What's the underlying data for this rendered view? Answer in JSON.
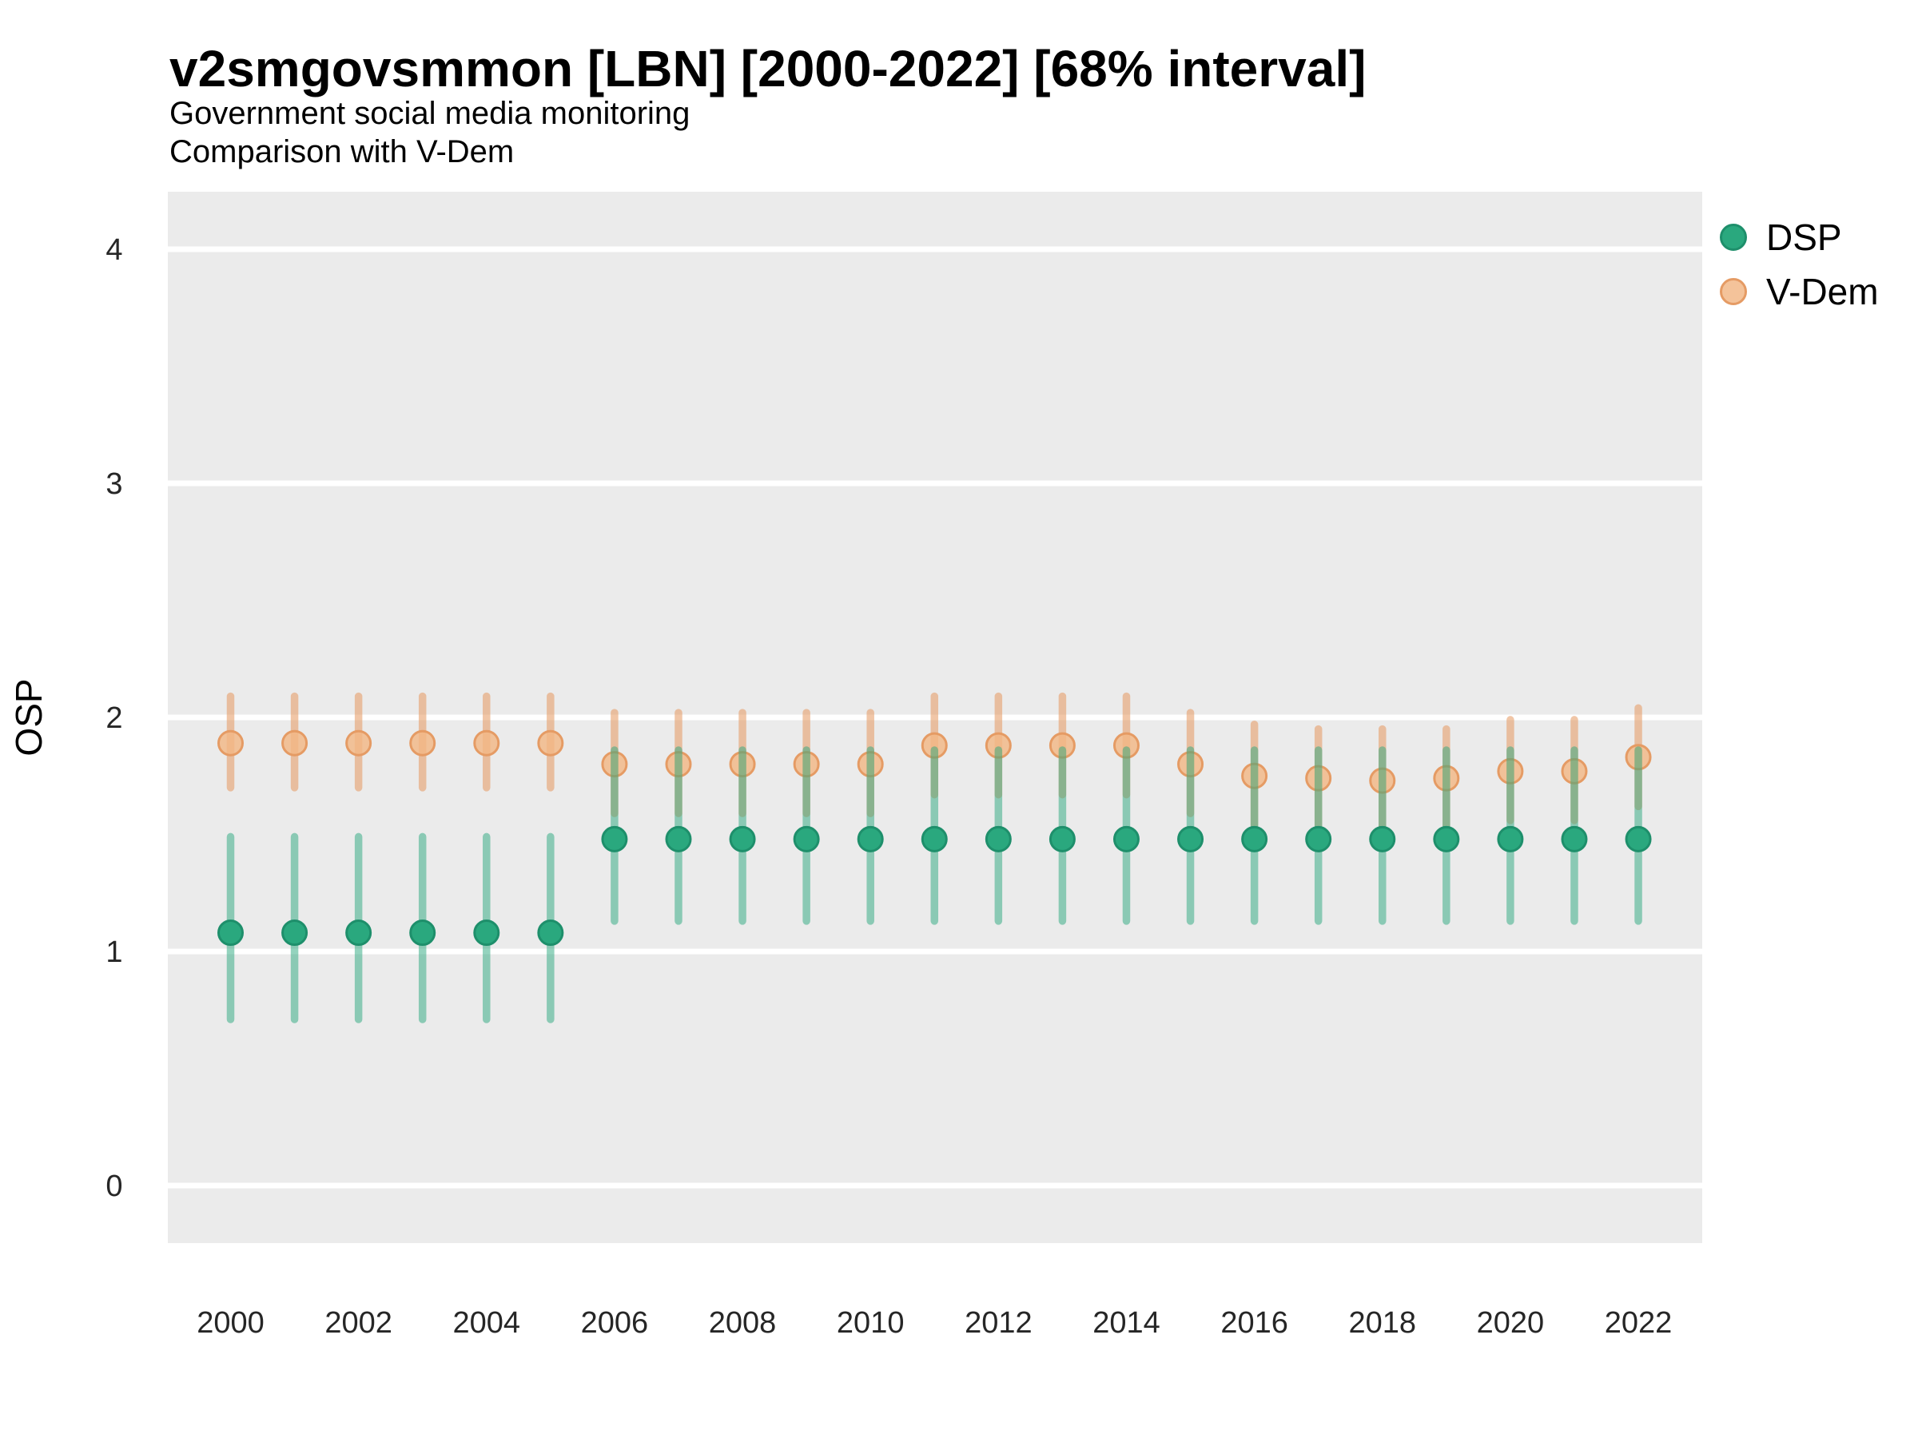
{
  "header": {
    "title": "v2smgovsmmon [LBN] [2000-2022] [68% interval]",
    "subtitle1": "Government social media monitoring",
    "subtitle2": "Comparison with V-Dem"
  },
  "axes": {
    "y_title": "OSP",
    "y_tick_labels": [
      "0",
      "1",
      "2",
      "3",
      "4"
    ],
    "x_tick_labels": [
      "2000",
      "2002",
      "2004",
      "2006",
      "2008",
      "2010",
      "2012",
      "2014",
      "2016",
      "2018",
      "2020",
      "2022"
    ]
  },
  "legend": {
    "items": [
      {
        "label": "DSP",
        "fill": "#2AA87E",
        "stroke": "#1E8F6B"
      },
      {
        "label": "V-Dem",
        "fill": "#F4C39A",
        "stroke": "#E59B64"
      }
    ]
  },
  "colors": {
    "page_bg": "#FFFFFF",
    "panel_bg": "#EBEBEB",
    "grid": "#FFFFFF",
    "text": "#000000",
    "tick_text": "#262626",
    "dsp_point_fill": "#2AA87E",
    "dsp_point_stroke": "#1E8F6B",
    "dsp_bar": "rgba(42,168,126,0.5)",
    "vdem_point_fill": "rgba(242,183,131,0.8)",
    "vdem_point_stroke": "#E59B64",
    "vdem_bar": "rgba(229,151,94,0.55)"
  },
  "chart_data": {
    "type": "pointrange",
    "title": "v2smgovsmmon [LBN] [2000-2022] [68% interval]",
    "subtitle": [
      "Government social media monitoring",
      "Comparison with V-Dem"
    ],
    "xlabel": "",
    "ylabel": "OSP",
    "interval": "68%",
    "ylim": [
      0,
      4
    ],
    "y_ticks": [
      0,
      1,
      2,
      3,
      4
    ],
    "x_ticks": [
      2000,
      2002,
      2004,
      2006,
      2008,
      2010,
      2012,
      2014,
      2016,
      2018,
      2020,
      2022
    ],
    "grid": "horizontal-major-white-on-gray",
    "legend_position": "right",
    "x": [
      2000,
      2001,
      2002,
      2003,
      2004,
      2005,
      2006,
      2007,
      2008,
      2009,
      2010,
      2011,
      2012,
      2013,
      2014,
      2015,
      2016,
      2017,
      2018,
      2019,
      2020,
      2021,
      2022
    ],
    "series": [
      {
        "name": "DSP",
        "mid": [
          1.08,
          1.08,
          1.08,
          1.08,
          1.08,
          1.08,
          1.48,
          1.48,
          1.48,
          1.48,
          1.48,
          1.48,
          1.48,
          1.48,
          1.48,
          1.48,
          1.48,
          1.48,
          1.48,
          1.48,
          1.48,
          1.48,
          1.48
        ],
        "lo": [
          0.71,
          0.71,
          0.71,
          0.71,
          0.71,
          0.71,
          1.13,
          1.13,
          1.13,
          1.13,
          1.13,
          1.13,
          1.13,
          1.13,
          1.13,
          1.13,
          1.13,
          1.13,
          1.13,
          1.13,
          1.13,
          1.13,
          1.13
        ],
        "hi": [
          1.49,
          1.49,
          1.49,
          1.49,
          1.49,
          1.49,
          1.86,
          1.86,
          1.86,
          1.86,
          1.86,
          1.86,
          1.86,
          1.86,
          1.86,
          1.86,
          1.86,
          1.86,
          1.86,
          1.86,
          1.86,
          1.86,
          1.86
        ]
      },
      {
        "name": "V-Dem",
        "mid": [
          1.89,
          1.89,
          1.89,
          1.89,
          1.89,
          1.89,
          1.8,
          1.8,
          1.8,
          1.8,
          1.8,
          1.88,
          1.88,
          1.88,
          1.88,
          1.8,
          1.75,
          1.74,
          1.73,
          1.74,
          1.77,
          1.77,
          1.83
        ],
        "lo": [
          1.7,
          1.7,
          1.7,
          1.7,
          1.7,
          1.7,
          1.59,
          1.59,
          1.59,
          1.59,
          1.59,
          1.67,
          1.67,
          1.67,
          1.67,
          1.59,
          1.54,
          1.52,
          1.52,
          1.52,
          1.56,
          1.56,
          1.62
        ],
        "hi": [
          2.09,
          2.09,
          2.09,
          2.09,
          2.09,
          2.09,
          2.02,
          2.02,
          2.02,
          2.02,
          2.02,
          2.09,
          2.09,
          2.09,
          2.09,
          2.02,
          1.97,
          1.95,
          1.95,
          1.95,
          1.99,
          1.99,
          2.04
        ]
      }
    ]
  }
}
